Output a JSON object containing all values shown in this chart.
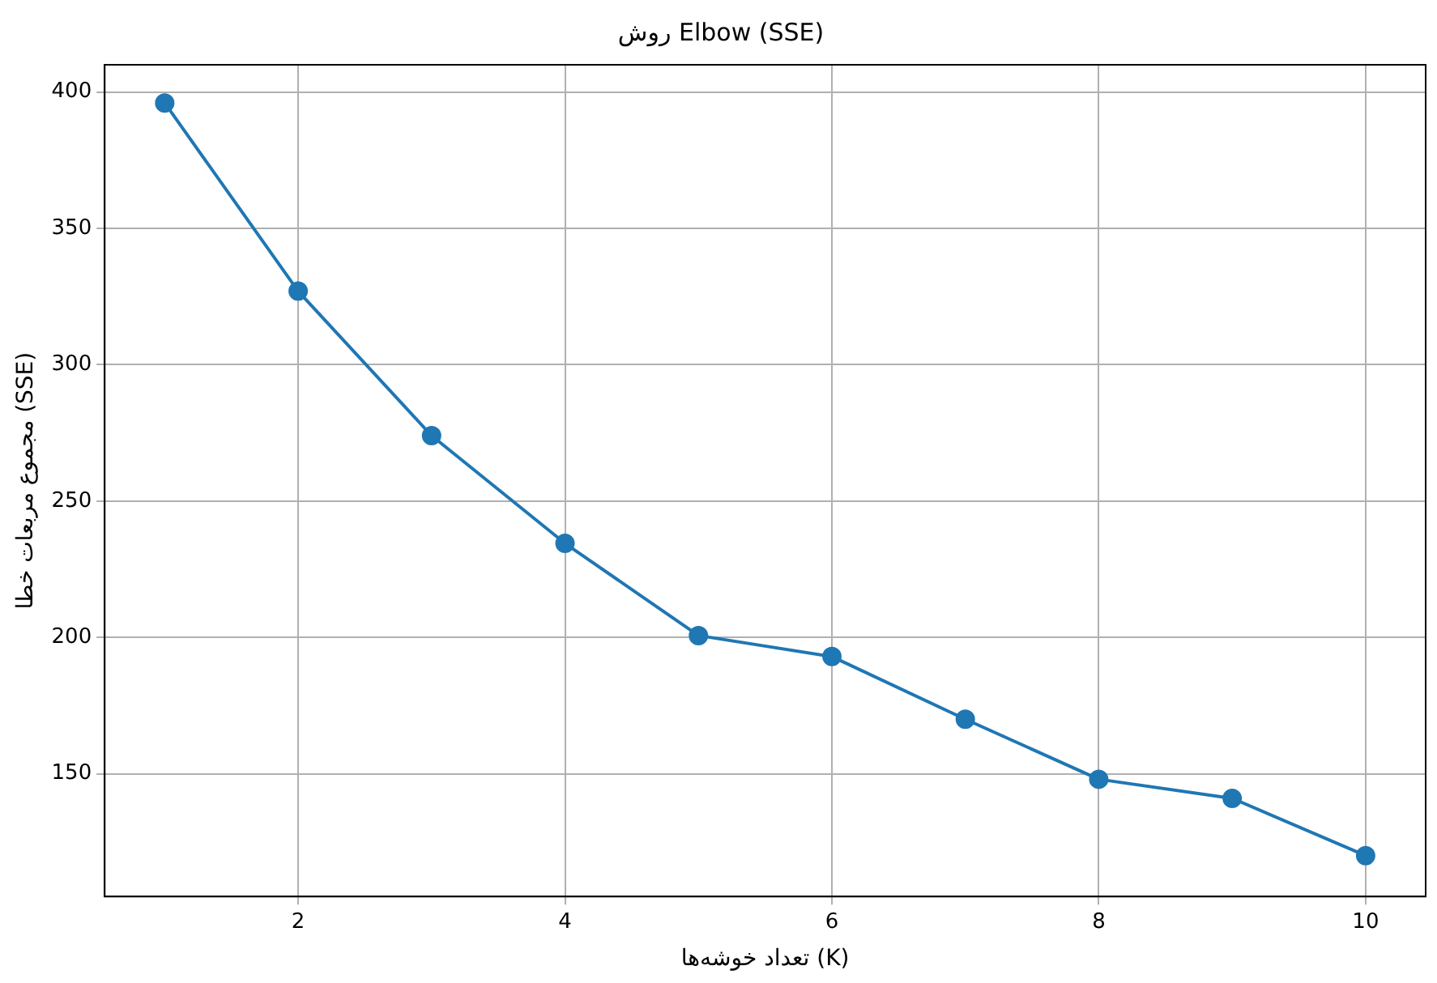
{
  "chart_data": {
    "type": "line",
    "title": "روش Elbow (SSE)",
    "xlabel": "تعداد خوشه‌ها (K)",
    "ylabel": "مجموع مربعات خطا (SSE)",
    "x": [
      1,
      2,
      3,
      4,
      5,
      6,
      7,
      8,
      9,
      10
    ],
    "series": [
      {
        "color": "#1f77b4",
        "values": [
          396,
          327,
          274,
          234.5,
          200.7,
          193,
          170,
          148,
          141,
          120
        ]
      }
    ],
    "xlim": [
      0.55,
      10.45
    ],
    "ylim": [
      105,
      410
    ],
    "xticks": [
      2,
      4,
      6,
      8,
      10
    ],
    "yticks": [
      150,
      200,
      250,
      300,
      350,
      400
    ],
    "grid": true,
    "marker": "circle",
    "line_style": "solid"
  }
}
